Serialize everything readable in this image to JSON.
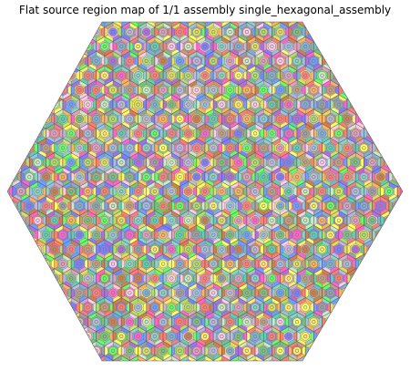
{
  "figure": {
    "title": "Flat source region map of 1/1 assembly single_hexagonal_assembly"
  },
  "assembly": {
    "lattice": "hexagonal",
    "orientation": "flat",
    "rings": 12,
    "region_shape": "nested-hexagon-and-circle pin cells",
    "palette": [
      "#8dd3c7",
      "#fdb462",
      "#bebada",
      "#fb8072",
      "#80b1d3",
      "#b3de69",
      "#fccde5",
      "#ccebc5",
      "#ffed6f",
      "#ff7f7f",
      "#7fbf7f",
      "#7f7fff",
      "#ff66cc",
      "#66ff66",
      "#ffff66",
      "#c0a080",
      "#a0c0e0",
      "#e0a0c0",
      "#9aa0a6",
      "#d08050",
      "#60d0b0",
      "#b070e0",
      "#e0e060",
      "#70a0ff"
    ],
    "outline_color": "#555555",
    "marker_color": "#777777"
  }
}
